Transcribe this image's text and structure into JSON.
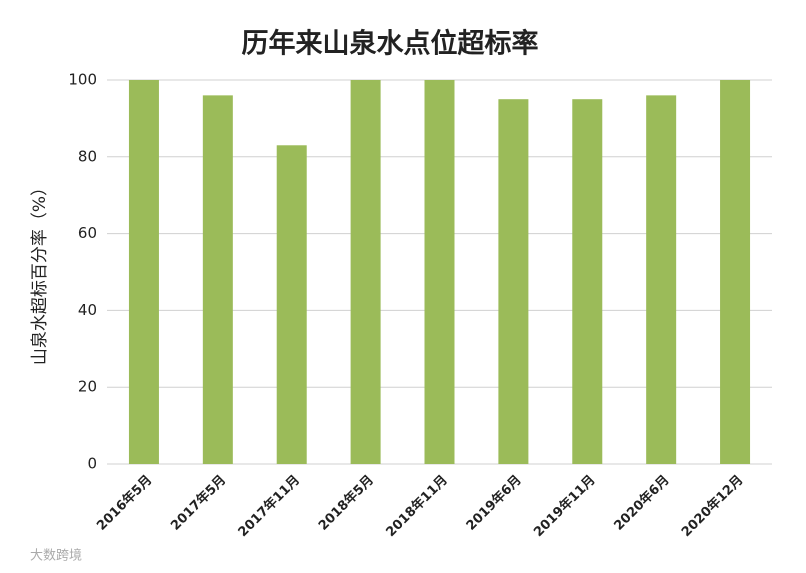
{
  "chart_data": {
    "type": "bar",
    "title": "历年来山泉水点位超标率",
    "y_label": "山泉水超标百分率（%）",
    "categories": [
      "2016年5月",
      "2017年5月",
      "2017年11月",
      "2018年5月",
      "2018年11月",
      "2019年6月",
      "2019年11月",
      "2020年6月",
      "2020年12月"
    ],
    "values": [
      100,
      96,
      83,
      100,
      100,
      95,
      95,
      96,
      100
    ],
    "color": "#9bbb59",
    "ylim": [
      0,
      100
    ],
    "yticks": [
      0,
      20,
      40,
      60,
      80,
      100
    ],
    "grid": true
  },
  "watermark": "大数跨境"
}
